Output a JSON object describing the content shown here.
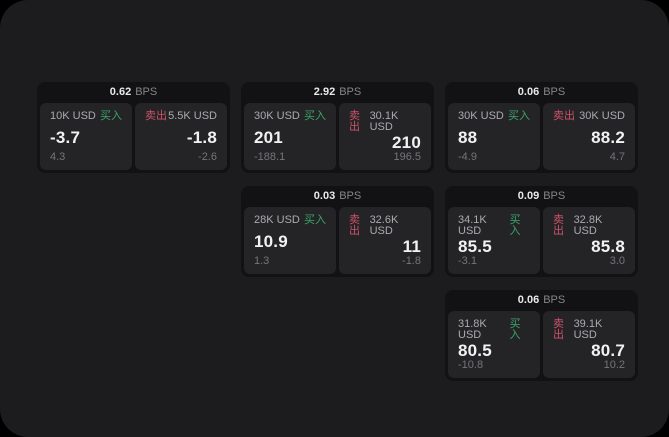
{
  "labels": {
    "bps": "BPS",
    "buy": "买入",
    "sell": "卖出"
  },
  "colors": {
    "background": "#000000",
    "panel": "#1c1c1e",
    "card": "#121214",
    "subpanel": "#242427",
    "buy_accent": "#3ca56a",
    "sell_accent": "#ce5268"
  },
  "cards": [
    {
      "bps": "0.62",
      "buy": {
        "amount": "10K USD",
        "value": "-3.7",
        "sub": "4.3"
      },
      "sell": {
        "amount": "5.5K USD",
        "value": "-1.8",
        "sub": "-2.6"
      }
    },
    {
      "bps": "2.92",
      "buy": {
        "amount": "30K USD",
        "value": "201",
        "sub": "-188.1"
      },
      "sell": {
        "amount": "30.1K USD",
        "value": "210",
        "sub": "196.5"
      }
    },
    {
      "bps": "0.06",
      "buy": {
        "amount": "30K USD",
        "value": "88",
        "sub": "-4.9"
      },
      "sell": {
        "amount": "30K USD",
        "value": "88.2",
        "sub": "4.7"
      }
    },
    {
      "bps": "0.03",
      "buy": {
        "amount": "28K USD",
        "value": "10.9",
        "sub": "1.3"
      },
      "sell": {
        "amount": "32.6K USD",
        "value": "11",
        "sub": "-1.8"
      }
    },
    {
      "bps": "0.09",
      "buy": {
        "amount": "34.1K USD",
        "value": "85.5",
        "sub": "-3.1"
      },
      "sell": {
        "amount": "32.8K USD",
        "value": "85.8",
        "sub": "3.0"
      }
    },
    {
      "bps": "0.06",
      "buy": {
        "amount": "31.8K USD",
        "value": "80.5",
        "sub": "-10.8"
      },
      "sell": {
        "amount": "39.1K USD",
        "value": "80.7",
        "sub": "10.2"
      }
    }
  ]
}
